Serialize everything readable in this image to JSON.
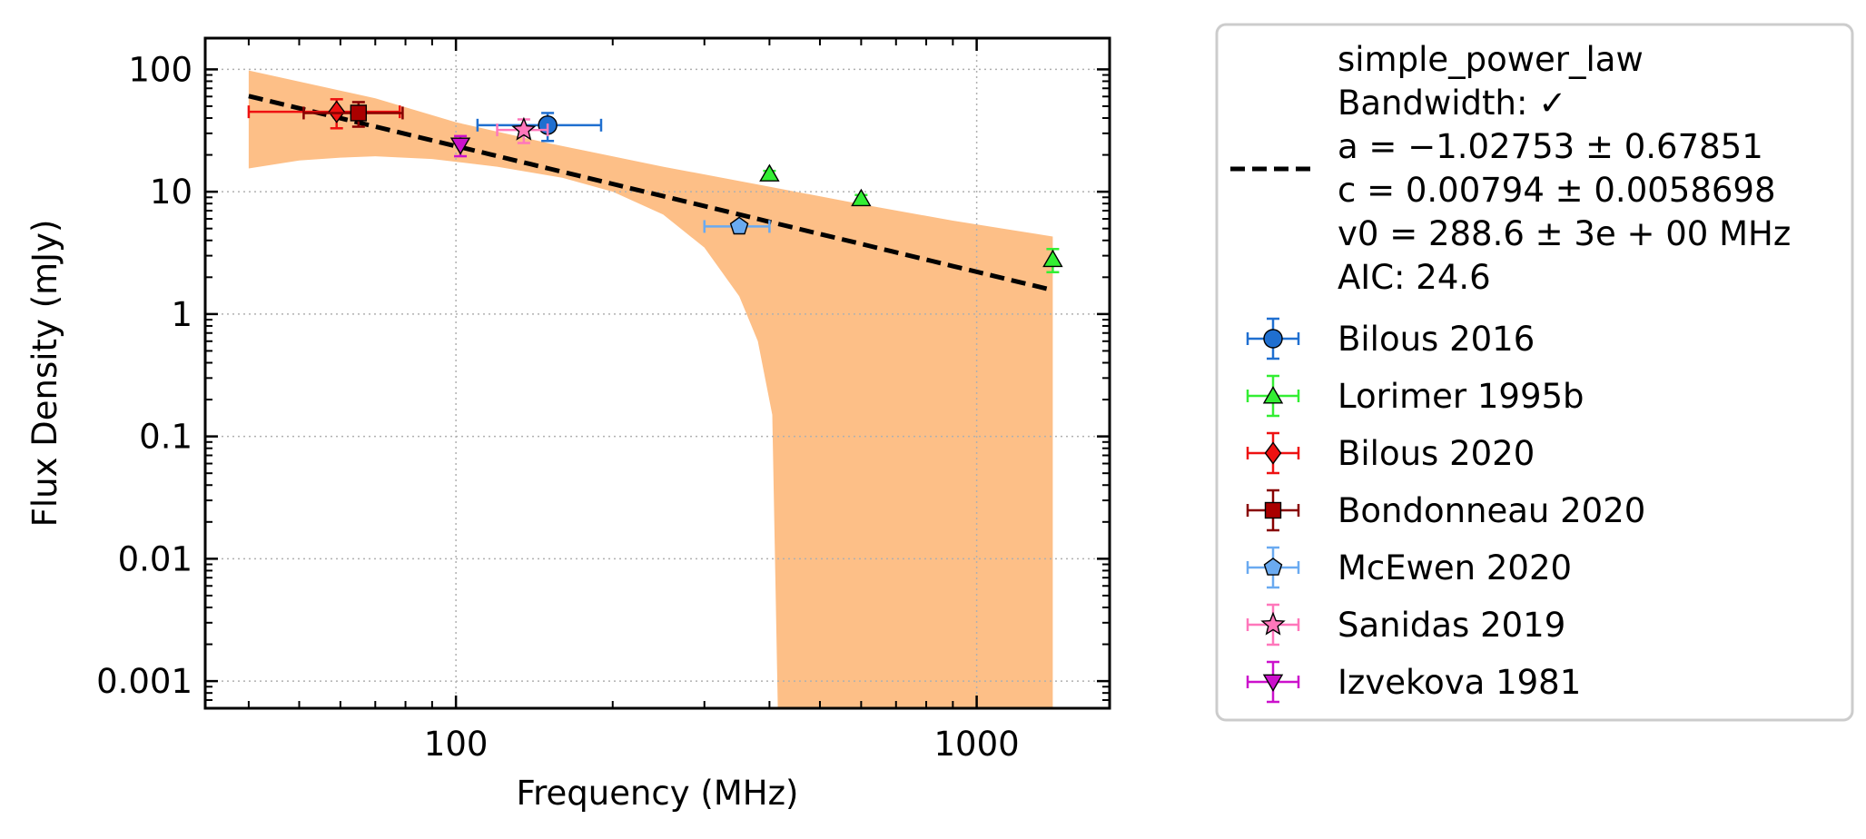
{
  "chart_data": {
    "type": "scatter",
    "xlabel": "Frequency (MHz)",
    "ylabel": "Flux Density (mJy)",
    "xscale": "log",
    "yscale": "log",
    "xlim": [
      33,
      1800
    ],
    "ylim": [
      0.0006,
      180
    ],
    "grid": true,
    "legend_placement": "outside-right",
    "x_ticks": [
      {
        "value": 100,
        "label": "100"
      },
      {
        "value": 1000,
        "label": "1000"
      }
    ],
    "y_ticks": [
      {
        "value": 0.001,
        "label": "0.001"
      },
      {
        "value": 0.01,
        "label": "0.01"
      },
      {
        "value": 0.1,
        "label": "0.1"
      },
      {
        "value": 1,
        "label": "1"
      },
      {
        "value": 10,
        "label": "10"
      },
      {
        "value": 100,
        "label": "100"
      }
    ],
    "fit": {
      "lines": [
        "simple_power_law",
        "Bandwidth: ✓",
        "a = −1.02753 ± 0.67851",
        "c = 0.00794 ± 0.0058698",
        "v0 = 288.6 ± 3e + 00 MHz",
        "AIC: 24.6"
      ],
      "a": -1.02753,
      "c": 0.00794,
      "v0": 288.6,
      "x_range": [
        40,
        1400
      ],
      "line_color": "#000000",
      "band_color": "#fdbf87",
      "band_upper": [
        [
          40,
          98
        ],
        [
          70,
          58
        ],
        [
          100,
          37
        ],
        [
          150,
          25
        ],
        [
          250,
          16
        ],
        [
          400,
          11
        ],
        [
          600,
          7.9
        ],
        [
          900,
          5.8
        ],
        [
          1400,
          4.3
        ]
      ],
      "band_lower": [
        [
          40,
          15.5
        ],
        [
          50,
          18
        ],
        [
          60,
          19
        ],
        [
          70,
          19.5
        ],
        [
          90,
          18.5
        ],
        [
          120,
          16
        ],
        [
          160,
          13
        ],
        [
          200,
          10
        ],
        [
          250,
          6.5
        ],
        [
          300,
          3.5
        ],
        [
          350,
          1.4
        ],
        [
          380,
          0.6
        ],
        [
          405,
          0.15
        ],
        [
          415,
          0.0006
        ],
        [
          1400,
          0.0006
        ]
      ]
    },
    "series": [
      {
        "name": "Bilous 2016",
        "marker": "circle",
        "color": "#1f6fd0",
        "ecolor": "#1f6fd0",
        "points": [
          {
            "x": 150,
            "y": 35,
            "xerr": [
              40,
              40
            ],
            "yerr": [
              9,
              9
            ]
          }
        ]
      },
      {
        "name": "Lorimer 1995b",
        "marker": "triangle-up",
        "color": "#33ee33",
        "ecolor": "#33ee33",
        "points": [
          {
            "x": 400,
            "y": 14,
            "xerr": [
              0,
              0
            ],
            "yerr": [
              0.8,
              0.8
            ]
          },
          {
            "x": 600,
            "y": 8.8,
            "xerr": [
              0,
              0
            ],
            "yerr": [
              0.6,
              0.6
            ]
          },
          {
            "x": 1400,
            "y": 2.8,
            "xerr": [
              0,
              0
            ],
            "yerr": [
              0.6,
              0.6
            ]
          }
        ]
      },
      {
        "name": "Bilous 2020",
        "marker": "diamond",
        "color": "#ee1111",
        "ecolor": "#ee1111",
        "points": [
          {
            "x": 59,
            "y": 45,
            "xerr": [
              19,
              19
            ],
            "yerr": [
              12,
              12
            ]
          }
        ]
      },
      {
        "name": "Bondonneau 2020",
        "marker": "square",
        "color": "#aa0000",
        "ecolor": "#880000",
        "points": [
          {
            "x": 65,
            "y": 44,
            "xerr": [
              14,
              14
            ],
            "yerr": [
              10,
              10
            ]
          }
        ]
      },
      {
        "name": "McEwen 2020",
        "marker": "pentagon",
        "color": "#6aaaf0",
        "ecolor": "#6aaaf0",
        "points": [
          {
            "x": 350,
            "y": 5.2,
            "xerr": [
              50,
              50
            ],
            "yerr": [
              0.4,
              0.4
            ]
          }
        ]
      },
      {
        "name": "Sanidas 2019",
        "marker": "star",
        "color": "#ff77bb",
        "ecolor": "#ff77bb",
        "points": [
          {
            "x": 135,
            "y": 32,
            "xerr": [
              15,
              15
            ],
            "yerr": [
              7,
              7
            ]
          }
        ]
      },
      {
        "name": "Izvekova 1981",
        "marker": "triangle-down",
        "color": "#cc11cc",
        "ecolor": "#cc11cc",
        "points": [
          {
            "x": 102,
            "y": 24,
            "xerr": [
              0,
              0
            ],
            "yerr": [
              4.5,
              4.5
            ]
          }
        ]
      }
    ]
  }
}
